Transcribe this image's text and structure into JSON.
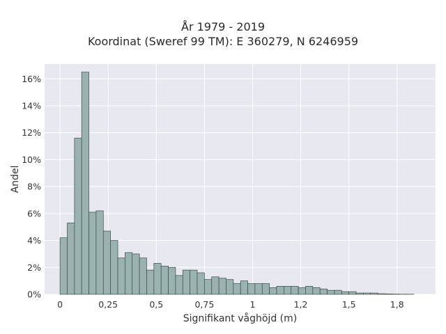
{
  "chart_data": {
    "type": "bar",
    "title_line1": "År 1979 - 2019",
    "title_line2": "Koordinat (Sweref 99 TM): E 360279, N 6246959",
    "xlabel": "Signifikant våghöjd (m)",
    "ylabel": "Andel",
    "xlim": [
      -0.08,
      1.95
    ],
    "ylim": [
      0,
      0.171
    ],
    "bin_start": 0.0,
    "bin_width": 0.0375,
    "x_ticks": [
      {
        "value": 0,
        "label": "0"
      },
      {
        "value": 0.25,
        "label": "0,25"
      },
      {
        "value": 0.5,
        "label": "0,5"
      },
      {
        "value": 0.75,
        "label": "0,75"
      },
      {
        "value": 1.0,
        "label": "1"
      },
      {
        "value": 1.25,
        "label": "1,2"
      },
      {
        "value": 1.5,
        "label": "1,5"
      },
      {
        "value": 1.75,
        "label": "1,8"
      }
    ],
    "y_ticks": [
      {
        "value": 0,
        "label": "0%"
      },
      {
        "value": 0.02,
        "label": "2%"
      },
      {
        "value": 0.04,
        "label": "4%"
      },
      {
        "value": 0.06,
        "label": "6%"
      },
      {
        "value": 0.08,
        "label": "8%"
      },
      {
        "value": 0.1,
        "label": "10%"
      },
      {
        "value": 0.12,
        "label": "12%"
      },
      {
        "value": 0.14,
        "label": "14%"
      },
      {
        "value": 0.16,
        "label": "16%"
      }
    ],
    "values": [
      0.042,
      0.053,
      0.116,
      0.165,
      0.061,
      0.062,
      0.047,
      0.04,
      0.027,
      0.031,
      0.03,
      0.027,
      0.018,
      0.023,
      0.021,
      0.02,
      0.014,
      0.018,
      0.018,
      0.016,
      0.011,
      0.013,
      0.012,
      0.011,
      0.008,
      0.01,
      0.008,
      0.008,
      0.008,
      0.005,
      0.006,
      0.006,
      0.006,
      0.005,
      0.006,
      0.005,
      0.004,
      0.003,
      0.003,
      0.002,
      0.002,
      0.001,
      0.001,
      0.001,
      0.0005,
      0.0003,
      0.0002,
      0.0001,
      0.0001
    ],
    "grid": true,
    "colors": {
      "bar_fill": "#9ab3b0",
      "bar_edge": "#3f4a48",
      "plot_bg": "#e8e8f0",
      "grid": "#ffffff"
    }
  }
}
